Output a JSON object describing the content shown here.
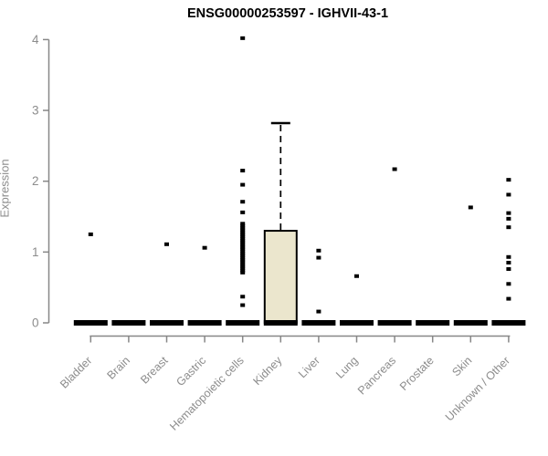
{
  "chart_data": {
    "type": "boxplot",
    "title": "ENSG00000253597 - IGHVII-43-1",
    "ylabel": "Expression",
    "xlabel": "",
    "ylim": [
      0,
      4
    ],
    "yticks": [
      0,
      1,
      2,
      3,
      4
    ],
    "grid": false,
    "legend": "none",
    "categories": [
      "Bladder",
      "Brain",
      "Breast",
      "Gastric",
      "Hematopoietic cells",
      "Kidney",
      "Liver",
      "Lung",
      "Pancreas",
      "Prostate",
      "Skin",
      "Unknown / Other"
    ],
    "series": [
      {
        "category": "Bladder",
        "q1": 0,
        "median": 0,
        "q3": 0,
        "whisker_low": 0,
        "whisker_high": 0,
        "outliers": [
          1.25
        ]
      },
      {
        "category": "Brain",
        "q1": 0,
        "median": 0,
        "q3": 0,
        "whisker_low": 0,
        "whisker_high": 0,
        "outliers": []
      },
      {
        "category": "Breast",
        "q1": 0,
        "median": 0,
        "q3": 0,
        "whisker_low": 0,
        "whisker_high": 0,
        "outliers": [
          1.11
        ]
      },
      {
        "category": "Gastric",
        "q1": 0,
        "median": 0,
        "q3": 0,
        "whisker_low": 0,
        "whisker_high": 0,
        "outliers": [
          1.06
        ]
      },
      {
        "category": "Hematopoietic cells",
        "q1": 0,
        "median": 0,
        "q3": 0,
        "whisker_low": 0,
        "whisker_high": 0,
        "outliers": [
          4.02,
          2.15,
          1.95,
          1.71,
          1.56,
          1.4,
          1.37,
          1.34,
          1.31,
          1.28,
          1.25,
          1.22,
          1.19,
          1.16,
          1.13,
          1.1,
          1.07,
          1.04,
          1.01,
          0.98,
          0.95,
          0.92,
          0.89,
          0.86,
          0.83,
          0.8,
          0.77,
          0.74,
          0.71,
          0.37,
          0.25
        ]
      },
      {
        "category": "Kidney",
        "q1": 0,
        "median": 0,
        "q3": 1.3,
        "whisker_low": 0,
        "whisker_high": 2.82,
        "outliers": []
      },
      {
        "category": "Liver",
        "q1": 0,
        "median": 0,
        "q3": 0,
        "whisker_low": 0,
        "whisker_high": 0,
        "outliers": [
          1.02,
          0.92,
          0.16
        ]
      },
      {
        "category": "Lung",
        "q1": 0,
        "median": 0,
        "q3": 0,
        "whisker_low": 0,
        "whisker_high": 0,
        "outliers": [
          0.66
        ]
      },
      {
        "category": "Pancreas",
        "q1": 0,
        "median": 0,
        "q3": 0,
        "whisker_low": 0,
        "whisker_high": 0,
        "outliers": [
          2.17
        ]
      },
      {
        "category": "Prostate",
        "q1": 0,
        "median": 0,
        "q3": 0,
        "whisker_low": 0,
        "whisker_high": 0,
        "outliers": []
      },
      {
        "category": "Skin",
        "q1": 0,
        "median": 0,
        "q3": 0,
        "whisker_low": 0,
        "whisker_high": 0,
        "outliers": [
          1.63
        ]
      },
      {
        "category": "Unknown / Other",
        "q1": 0,
        "median": 0,
        "q3": 0,
        "whisker_low": 0,
        "whisker_high": 0,
        "outliers": [
          2.02,
          1.81,
          1.55,
          1.47,
          1.35,
          0.93,
          0.85,
          0.76,
          0.55,
          0.34
        ]
      }
    ],
    "colors": {
      "box_fill": "#ebe6cd",
      "box_stroke": "#000000",
      "median": "#000000",
      "point": "#000000",
      "whisker": "#000000",
      "axis": "#878787",
      "tick_label": "#8c8c8c",
      "title": "#000000"
    }
  }
}
